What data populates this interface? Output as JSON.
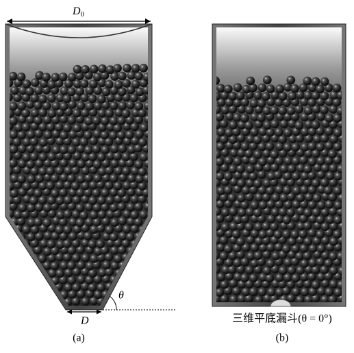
{
  "panel_a": {
    "width_label": {
      "base": "D",
      "sub": "0"
    },
    "angle_label": "θ",
    "outlet_label": "D",
    "caption": "(a)"
  },
  "panel_b": {
    "title": "三维平底漏斗(θ = 0°)",
    "caption": "(b)"
  }
}
